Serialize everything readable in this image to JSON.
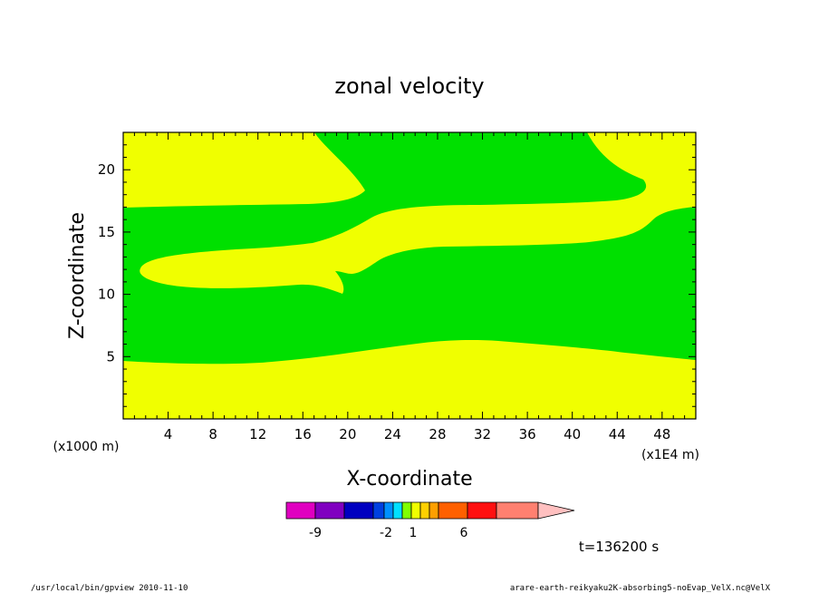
{
  "chart_data": {
    "type": "contour",
    "title": "zonal velocity",
    "xlabel": "X-coordinate",
    "ylabel": "Z-coordinate",
    "x_unit": "(x1E4 m)",
    "y_unit": "(x1000 m)",
    "xlim": [
      0,
      51
    ],
    "ylim": [
      0,
      23
    ],
    "x_ticks": [
      4,
      8,
      12,
      16,
      20,
      24,
      28,
      32,
      36,
      40,
      44,
      48
    ],
    "y_ticks": [
      5,
      10,
      15,
      20
    ],
    "colors": {
      "positive_fill": "#f0ff00",
      "negative_fill": "#00e000"
    },
    "colorbar": {
      "colors": [
        "#e000c0",
        "#8000c0",
        "#0000c0",
        "#0040e0",
        "#0090ff",
        "#00e0ff",
        "#80ff00",
        "#f0ff00",
        "#ffd000",
        "#ffa000",
        "#ff6000",
        "#ff1010",
        "#ff8070",
        "#ffc0c0"
      ],
      "tick_labels": [
        "-9",
        "-2",
        "1",
        "6"
      ]
    },
    "time_label": "t=136200 s"
  },
  "footer": {
    "left": "/usr/local/bin/gpview  2010-11-10",
    "right": "arare-earth-reikyaku2K-absorbing5-noEvap_VelX.nc@VelX"
  }
}
